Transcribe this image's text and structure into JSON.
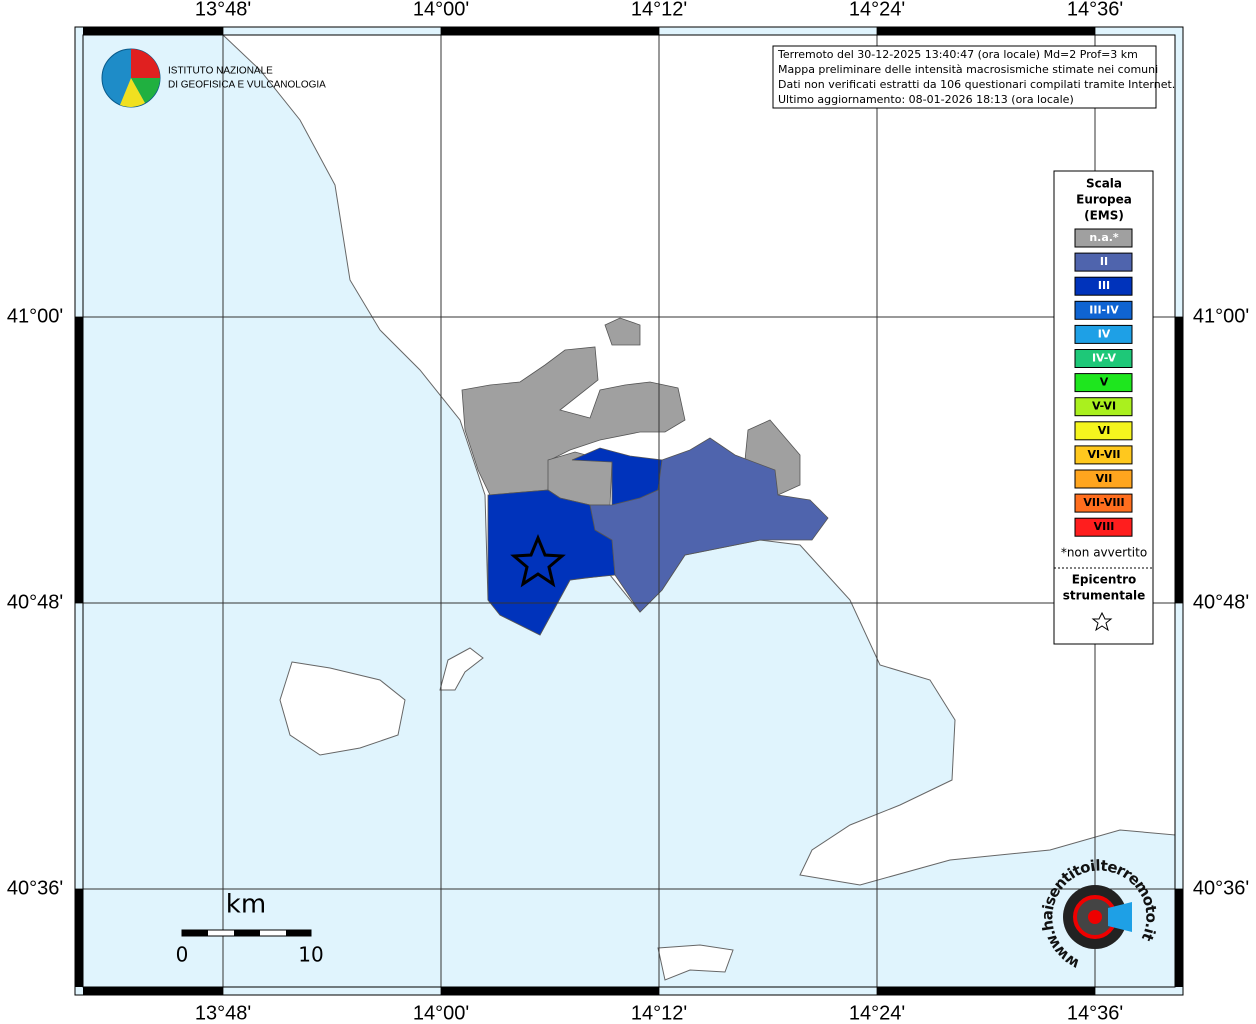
{
  "map": {
    "lon_labels": [
      "13°48'",
      "14°00'",
      "14°12'",
      "14°24'",
      "14°36'"
    ],
    "lat_labels": [
      "41°00'",
      "40°48'",
      "40°36'"
    ],
    "info": [
      "Terremoto del 30-12-2025 13:40:47 (ora locale) Md=2 Prof=3 km",
      "Mappa preliminare delle intensità macrosismiche stimate nei comuni",
      "Dati non verificati estratti da 106 questionari compilati tramite Internet.",
      "Ultimo aggiornamento: 08-01-2026 18:13 (ora locale)"
    ],
    "logo": [
      "ISTITUTO NAZIONALE",
      "DI GEOFISICA E VULCANOLOGIA"
    ],
    "legend": {
      "title": [
        "Scala",
        "Europea",
        "(EMS)"
      ],
      "items": [
        {
          "label": "n.a.*",
          "color": "#a0a0a0"
        },
        {
          "label": "II",
          "color": "#4f64ad"
        },
        {
          "label": "III",
          "color": "#0033bb"
        },
        {
          "label": "III-IV",
          "color": "#0f64d2"
        },
        {
          "label": "IV",
          "color": "#1ea0e6"
        },
        {
          "label": "IV-V",
          "color": "#1ec878"
        },
        {
          "label": "V",
          "color": "#1ee61e"
        },
        {
          "label": "V-VI",
          "color": "#aaf01e"
        },
        {
          "label": "VI",
          "color": "#f5f51e"
        },
        {
          "label": "VI-VII",
          "color": "#ffc81e"
        },
        {
          "label": "VII",
          "color": "#ffa51e"
        },
        {
          "label": "VII-VIII",
          "color": "#ff6e1e"
        },
        {
          "label": "VIII",
          "color": "#ff1e1e"
        }
      ],
      "note": "*non avvertito",
      "epicenter_title": [
        "Epicentro",
        "strumentale"
      ]
    },
    "scale": {
      "unit": "km",
      "labels": [
        "0",
        "10"
      ]
    },
    "badge": "www.haisentitoilterremoto.it"
  }
}
